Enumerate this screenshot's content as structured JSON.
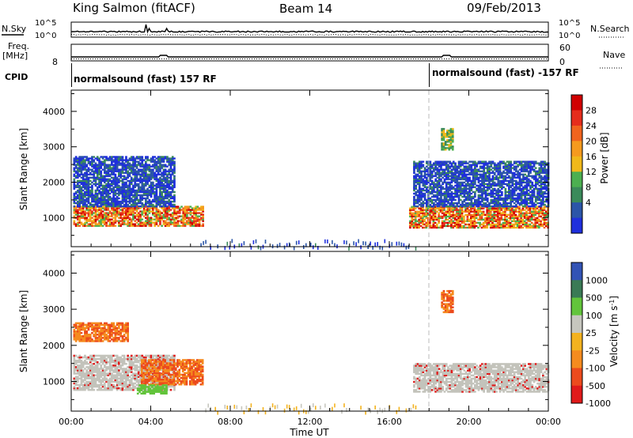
{
  "header": {
    "station": "King Salmon (fitACF)",
    "beam": "Beam 14",
    "date": "09/Feb/2013"
  },
  "strips": {
    "nsky_label": "N.Sky",
    "nsearch_label": "N.Search",
    "nsky_top": "10^5",
    "nsky_bottom": "10^0",
    "freq_label": "Freq.",
    "freq_unit": "[MHz]",
    "freq_value": "8",
    "nave_label": "Nave",
    "nave_top": "60",
    "nave_bottom": "0",
    "cpid_label": "CPID",
    "cpid_left": "normalsound (fast) 157 RF",
    "cpid_right": "normalsound (fast) -157 RF"
  },
  "colors": {
    "power": [
      "#1f2fdc",
      "#2b55a8",
      "#3a8a5a",
      "#4caf50",
      "#f0b81a",
      "#f59a1e",
      "#f0641e",
      "#e52d1c",
      "#d00000"
    ],
    "velocity": [
      "#3253b5",
      "#3a7a55",
      "#62c43b",
      "#c6c6be",
      "#f3b21f",
      "#f58b1f",
      "#ec4b1d",
      "#e01a1a"
    ],
    "ground_scatter": "#c3c3bb"
  },
  "chart_data": [
    {
      "type": "heatmap",
      "name": "power",
      "title": "",
      "xlabel": "Time UT",
      "ylabel": "Slant Range [km]",
      "xticks": [
        "00:00",
        "04:00",
        "08:00",
        "12:00",
        "16:00",
        "20:00",
        "00:00"
      ],
      "xlim_hours": [
        0,
        24
      ],
      "ylim_km": [
        180,
        4600
      ],
      "yticks": [
        1000,
        2000,
        3000,
        4000
      ],
      "colorbar_label": "Power [dB]",
      "colorbar_ticks": [
        "4",
        "8",
        "12",
        "16",
        "20",
        "24",
        "28"
      ],
      "echo_regions": [
        {
          "t": [
            0.1,
            6.6
          ],
          "r": [
            750,
            1300
          ],
          "level": "high"
        },
        {
          "t": [
            0.1,
            5.2
          ],
          "r": [
            1300,
            2700
          ],
          "level": "low"
        },
        {
          "t": [
            17.0,
            24.0
          ],
          "r": [
            700,
            1300
          ],
          "level": "high"
        },
        {
          "t": [
            17.2,
            24.0
          ],
          "r": [
            1300,
            2600
          ],
          "level": "low"
        },
        {
          "t": [
            18.6,
            19.2
          ],
          "r": [
            2900,
            3500
          ],
          "level": "mid"
        }
      ]
    },
    {
      "type": "heatmap",
      "name": "velocity",
      "title": "",
      "xlabel": "Time UT",
      "ylabel": "Slant Range [km]",
      "xticks": [
        "00:00",
        "04:00",
        "08:00",
        "12:00",
        "16:00",
        "20:00",
        "00:00"
      ],
      "xlim_hours": [
        0,
        24
      ],
      "ylim_km": [
        180,
        4600
      ],
      "yticks": [
        1000,
        2000,
        3000,
        4000
      ],
      "colorbar_label": "Velocity [m s^-1]",
      "colorbar_ticks": [
        "1000",
        "500",
        "100",
        "25",
        "-25",
        "-100",
        "-500",
        "-1000"
      ],
      "echo_regions": [
        {
          "t": [
            0.1,
            5.2
          ],
          "r": [
            750,
            1700
          ],
          "vel": "ground"
        },
        {
          "t": [
            0.1,
            2.8
          ],
          "r": [
            2100,
            2600
          ],
          "vel": "-300"
        },
        {
          "t": [
            3.5,
            6.6
          ],
          "r": [
            900,
            1600
          ],
          "vel": "-300"
        },
        {
          "t": [
            3.3,
            4.8
          ],
          "r": [
            650,
            900
          ],
          "vel": "150"
        },
        {
          "t": [
            17.2,
            24.0
          ],
          "r": [
            700,
            1500
          ],
          "vel": "ground"
        },
        {
          "t": [
            18.6,
            19.2
          ],
          "r": [
            2900,
            3500
          ],
          "vel": "-300"
        }
      ]
    }
  ]
}
